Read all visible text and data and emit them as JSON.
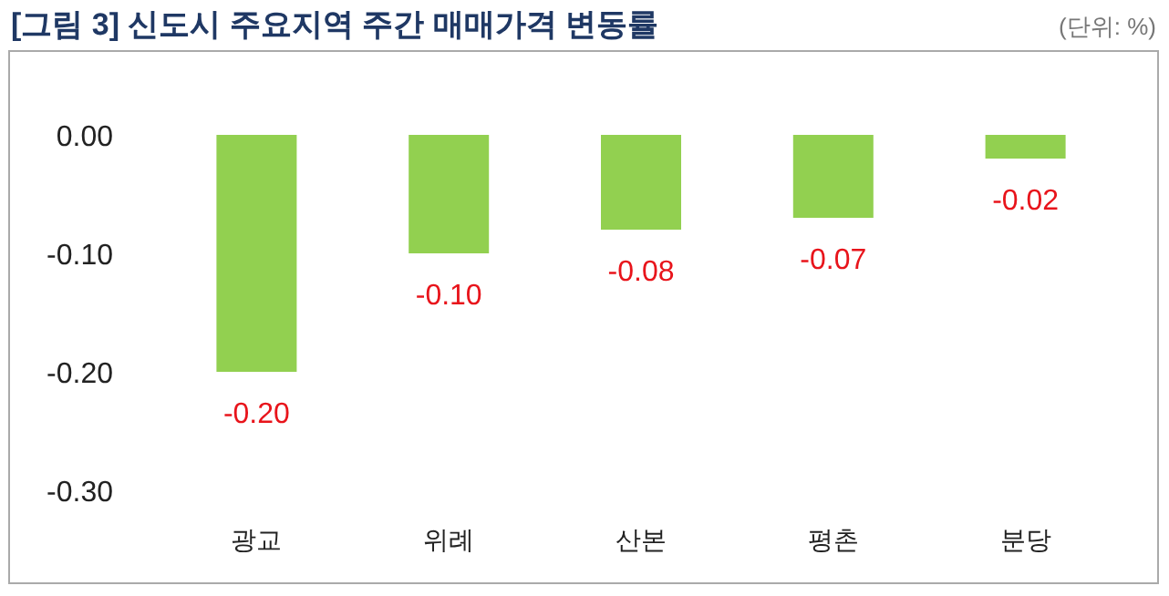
{
  "chart_data": {
    "type": "bar",
    "title": "[그림 3] 신도시 주요지역 주간 매매가격 변동률",
    "annotations": [
      "(단위: %)"
    ],
    "categories": [
      "광교",
      "위례",
      "산본",
      "평촌",
      "분당"
    ],
    "values": [
      -0.2,
      -0.1,
      -0.08,
      -0.07,
      -0.02
    ],
    "value_labels": [
      "-0.20",
      "-0.10",
      "-0.08",
      "-0.07",
      "-0.02"
    ],
    "color": "#92d050",
    "ylim": [
      -0.3,
      0.0
    ],
    "yticks": [
      {
        "value": 0,
        "label": "0.00"
      },
      {
        "value": -0.1,
        "label": "-0.10"
      },
      {
        "value": -0.2,
        "label": "-0.20"
      },
      {
        "value": -0.3,
        "label": "-0.30"
      }
    ],
    "grid": false
  }
}
